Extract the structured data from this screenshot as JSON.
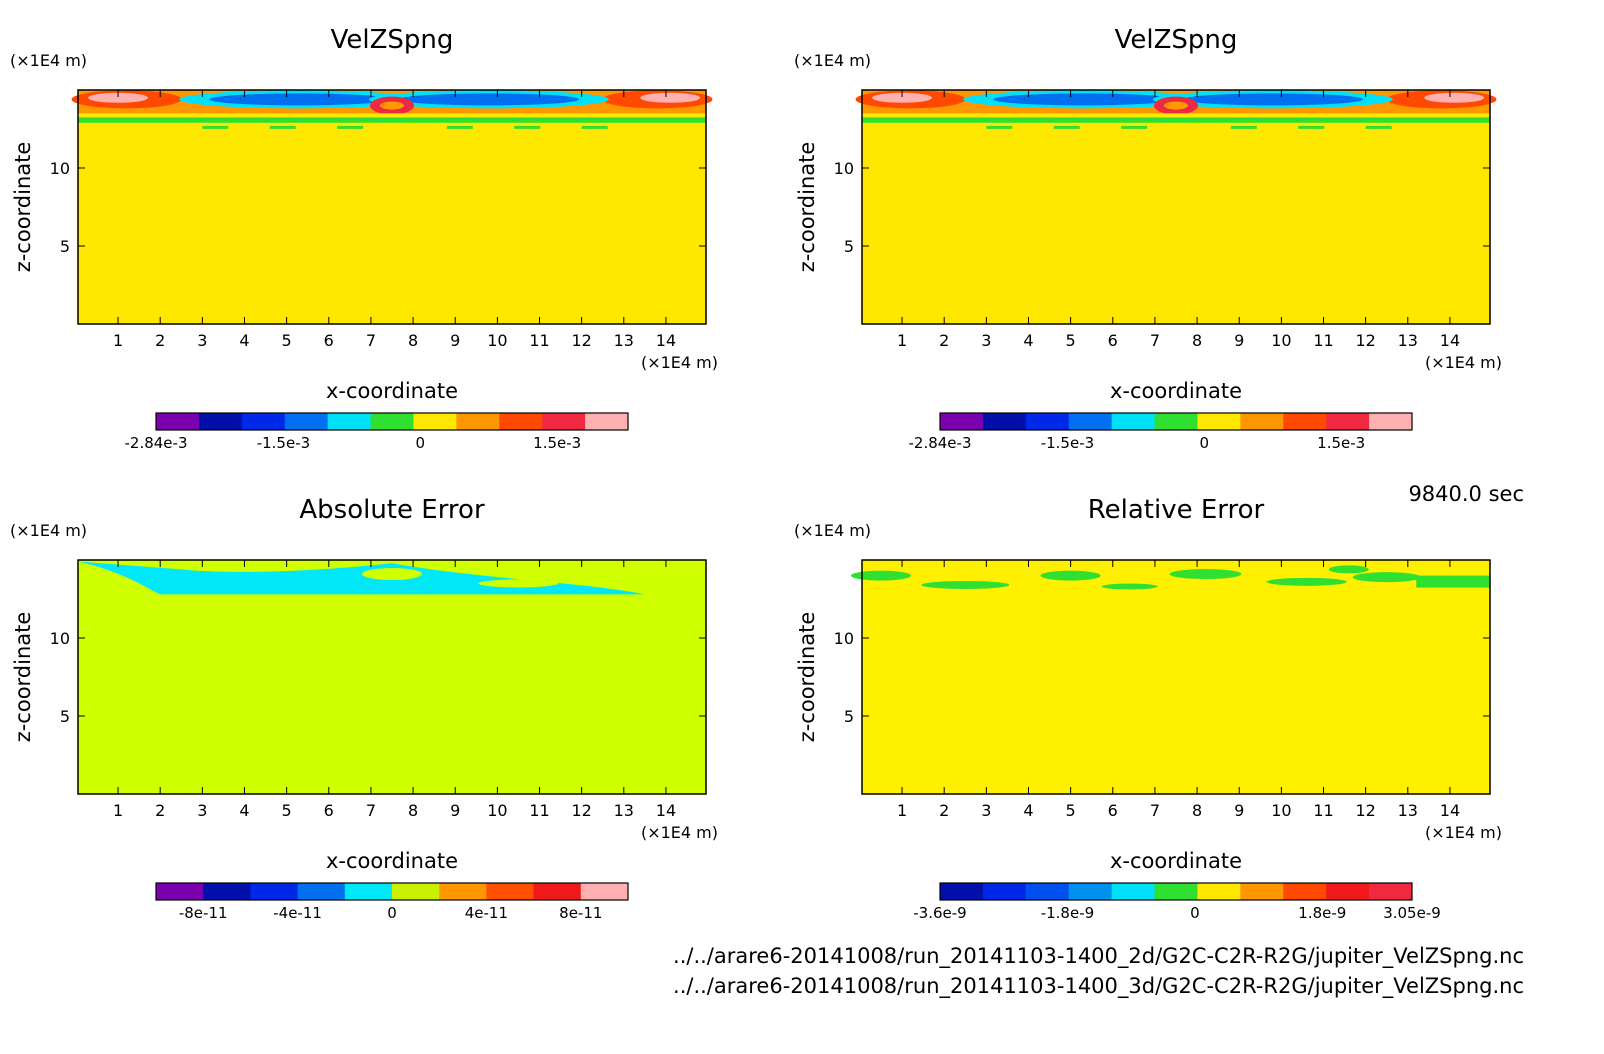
{
  "time_label": "9840.0 sec",
  "file_paths": [
    "../../arare6-20141008/run_20141103-1400_2d/G2C-C2R-R2G/jupiter_VelZSpng.nc",
    "../../arare6-20141008/run_20141103-1400_3d/G2C-C2R-R2G/jupiter_VelZSpng.nc"
  ],
  "chart_data": [
    {
      "type": "heatmap",
      "title": "VelZSpng",
      "xlabel": "x-coordinate",
      "ylabel": "z-coordinate",
      "x_unit": "(×1E4 m)",
      "y_unit": "(×1E4 m)",
      "x_ticks": [
        1,
        2,
        3,
        4,
        5,
        6,
        7,
        8,
        9,
        10,
        11,
        12,
        13,
        14
      ],
      "y_ticks": [
        5,
        10
      ],
      "xlim": [
        0.05,
        14.95
      ],
      "ylim": [
        0,
        15
      ],
      "background_color": "#ffe800",
      "colorbar": {
        "colors": [
          "#7b00b0",
          "#0010a8",
          "#0028e8",
          "#0070f0",
          "#00e0f8",
          "#30e030",
          "#ffe800",
          "#ff9800",
          "#ff4800",
          "#f02840",
          "#ffb0b0"
        ],
        "tick_labels": [
          "-2.84e-3",
          "-1.5e-3",
          "0",
          "1.5e-3"
        ]
      }
    },
    {
      "type": "heatmap",
      "title": "VelZSpng",
      "xlabel": "x-coordinate",
      "ylabel": "z-coordinate",
      "x_unit": "(×1E4 m)",
      "y_unit": "(×1E4 m)",
      "x_ticks": [
        1,
        2,
        3,
        4,
        5,
        6,
        7,
        8,
        9,
        10,
        11,
        12,
        13,
        14
      ],
      "y_ticks": [
        5,
        10
      ],
      "xlim": [
        0.05,
        14.95
      ],
      "ylim": [
        0,
        15
      ],
      "background_color": "#ffe800",
      "colorbar": {
        "colors": [
          "#7b00b0",
          "#0010a8",
          "#0028e8",
          "#0070f0",
          "#00e0f8",
          "#30e030",
          "#ffe800",
          "#ff9800",
          "#ff4800",
          "#f02840",
          "#ffb0b0"
        ],
        "tick_labels": [
          "-2.84e-3",
          "-1.5e-3",
          "0",
          "1.5e-3"
        ]
      }
    },
    {
      "type": "heatmap",
      "title": "Absolute Error",
      "xlabel": "x-coordinate",
      "ylabel": "z-coordinate",
      "x_unit": "(×1E4 m)",
      "y_unit": "(×1E4 m)",
      "x_ticks": [
        1,
        2,
        3,
        4,
        5,
        6,
        7,
        8,
        9,
        10,
        11,
        12,
        13,
        14
      ],
      "y_ticks": [
        5,
        10
      ],
      "xlim": [
        0.05,
        14.95
      ],
      "ylim": [
        0,
        15
      ],
      "background_color": "#d0ff00",
      "colorbar": {
        "colors": [
          "#7b00b0",
          "#0010a8",
          "#0028e8",
          "#0070f0",
          "#00e8f8",
          "#c8f000",
          "#ff9800",
          "#ff5000",
          "#f01818",
          "#ffb0b0"
        ],
        "tick_labels": [
          "-8e-11",
          "-4e-11",
          "0",
          "4e-11",
          "8e-11"
        ]
      }
    },
    {
      "type": "heatmap",
      "title": "Relative Error",
      "xlabel": "x-coordinate",
      "ylabel": "z-coordinate",
      "x_unit": "(×1E4 m)",
      "y_unit": "(×1E4 m)",
      "x_ticks": [
        1,
        2,
        3,
        4,
        5,
        6,
        7,
        8,
        9,
        10,
        11,
        12,
        13,
        14
      ],
      "y_ticks": [
        5,
        10
      ],
      "xlim": [
        0.05,
        14.95
      ],
      "ylim": [
        0,
        15
      ],
      "background_color": "#fff000",
      "colorbar": {
        "colors": [
          "#0010a8",
          "#0028e8",
          "#0050f0",
          "#0090f0",
          "#00e0f8",
          "#30e030",
          "#ffe800",
          "#ff9800",
          "#ff4800",
          "#f01818",
          "#f02840"
        ],
        "tick_labels": [
          "-3.6e-9",
          "-1.8e-9",
          "0",
          "1.8e-9",
          "3.05e-9"
        ]
      }
    }
  ]
}
